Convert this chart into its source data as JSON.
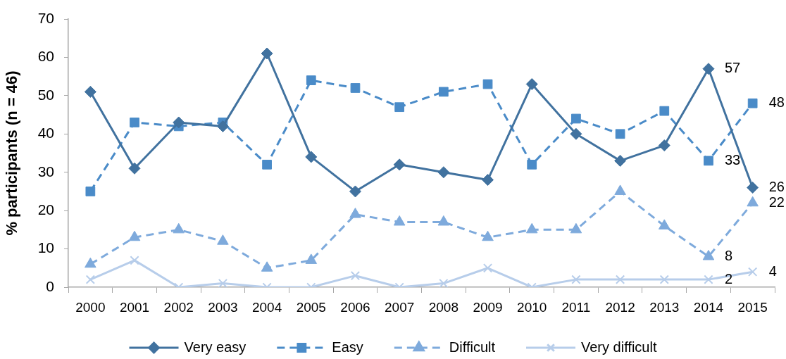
{
  "chart_data": {
    "type": "line",
    "ylabel": "% participants (n = 46)",
    "categories": [
      "2000",
      "2001",
      "2002",
      "2003",
      "2004",
      "2005",
      "2006",
      "2007",
      "2008",
      "2009",
      "2010",
      "2011",
      "2012",
      "2013",
      "2014",
      "2015"
    ],
    "ylim": [
      0,
      70
    ],
    "yticks": [
      0,
      10,
      20,
      30,
      40,
      50,
      60,
      70
    ],
    "legend": "bottom",
    "series": [
      {
        "name": "Very easy",
        "color": "#41729f",
        "marker": "diamond",
        "line_style": "solid",
        "values": [
          51,
          31,
          43,
          42,
          61,
          34,
          25,
          32,
          30,
          28,
          53,
          40,
          33,
          37,
          57,
          26
        ],
        "value_labels": [
          null,
          null,
          null,
          null,
          null,
          null,
          null,
          null,
          null,
          null,
          null,
          null,
          null,
          null,
          "57",
          "26"
        ]
      },
      {
        "name": "Easy",
        "color": "#4a8bc8",
        "marker": "square",
        "line_style": "dashed",
        "values": [
          25,
          43,
          42,
          43,
          32,
          54,
          52,
          47,
          51,
          53,
          32,
          44,
          40,
          46,
          33,
          48
        ],
        "value_labels": [
          null,
          null,
          null,
          null,
          null,
          null,
          null,
          null,
          null,
          null,
          null,
          null,
          null,
          null,
          "33",
          "48"
        ]
      },
      {
        "name": "Difficult",
        "color": "#7eaadc",
        "marker": "triangle",
        "line_style": "dashed",
        "values": [
          6,
          13,
          15,
          12,
          5,
          7,
          19,
          17,
          17,
          13,
          15,
          15,
          25,
          16,
          8,
          22
        ],
        "value_labels": [
          null,
          null,
          null,
          null,
          null,
          null,
          null,
          null,
          null,
          null,
          null,
          null,
          null,
          null,
          "8",
          "22"
        ]
      },
      {
        "name": "Very difficult",
        "color": "#b7cdea",
        "marker": "cross",
        "line_style": "solid",
        "values": [
          2,
          7,
          0,
          1,
          0,
          0,
          3,
          0,
          1,
          5,
          0,
          2,
          2,
          2,
          2,
          4
        ],
        "value_labels": [
          null,
          null,
          null,
          null,
          null,
          null,
          null,
          null,
          null,
          null,
          null,
          null,
          null,
          null,
          "2",
          "4"
        ]
      }
    ]
  }
}
